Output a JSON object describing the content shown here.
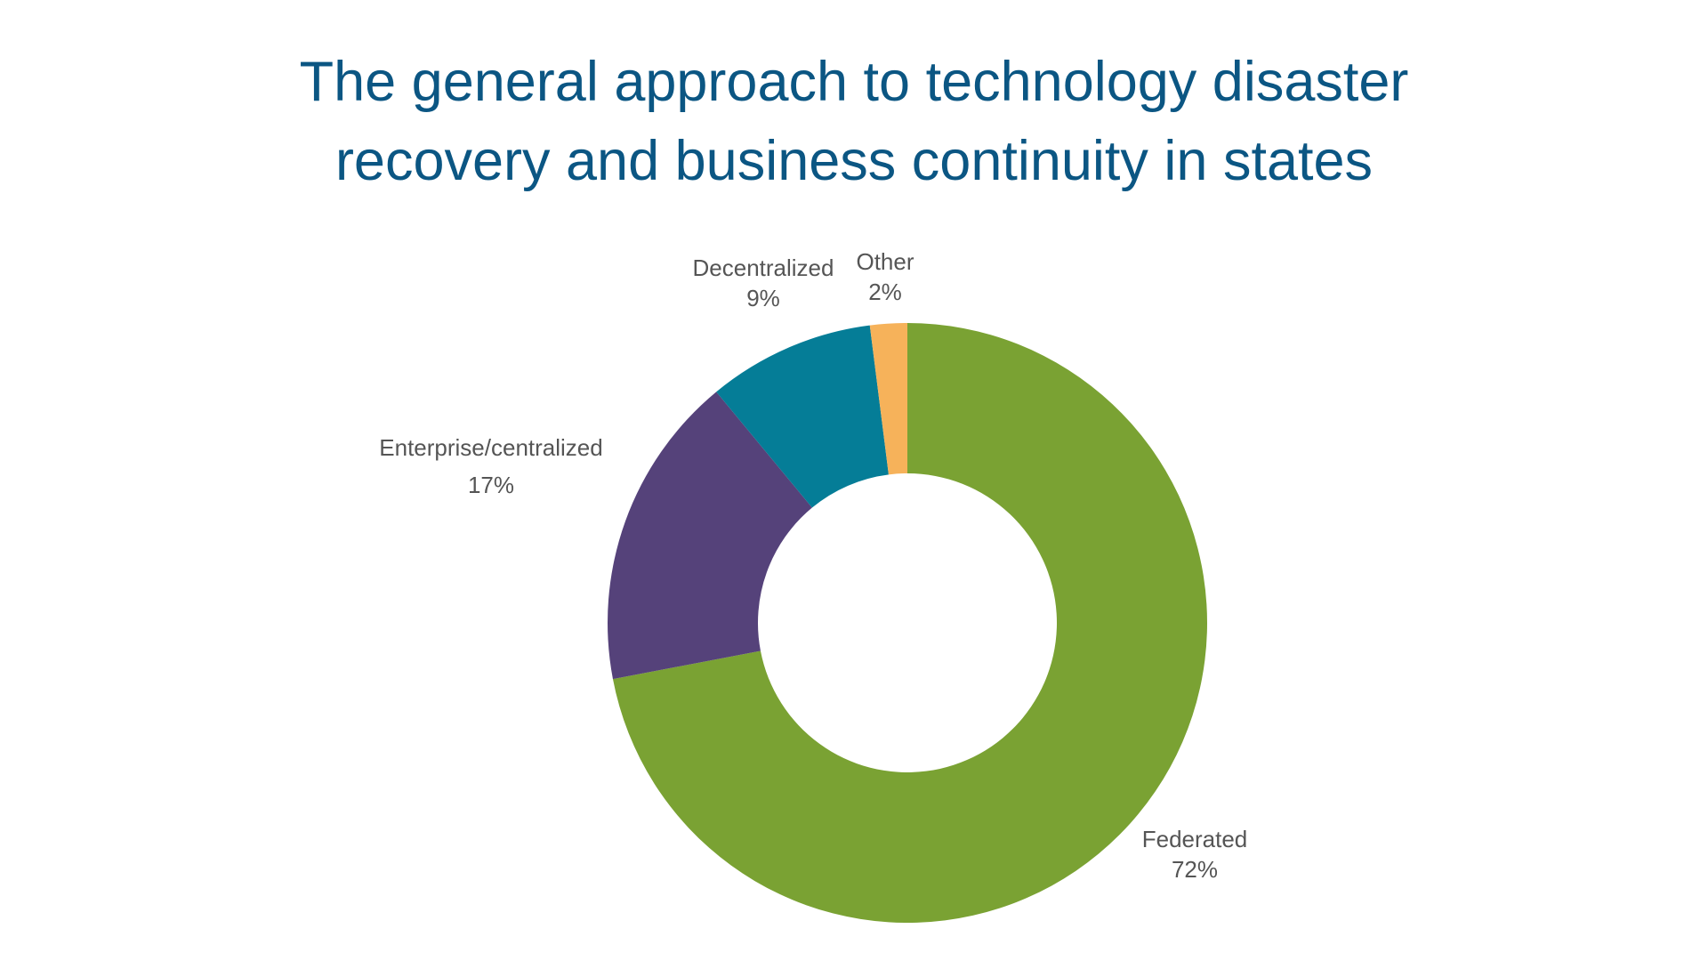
{
  "chart_data": {
    "type": "pie",
    "variant": "donut",
    "title_lines": [
      "The general approach to technology disaster",
      "recovery and business continuity in states"
    ],
    "slices": [
      {
        "label": "Federated",
        "value_label": "72%",
        "value": 72,
        "color": "#7aa233"
      },
      {
        "label": "Enterprise/centralized",
        "value_label": "17%",
        "value": 17,
        "color": "#55427a"
      },
      {
        "label": "Decentralized",
        "value_label": "9%",
        "value": 9,
        "color": "#057d97"
      },
      {
        "label": "Other",
        "value_label": "2%",
        "value": 2,
        "color": "#f6b25a"
      }
    ]
  }
}
